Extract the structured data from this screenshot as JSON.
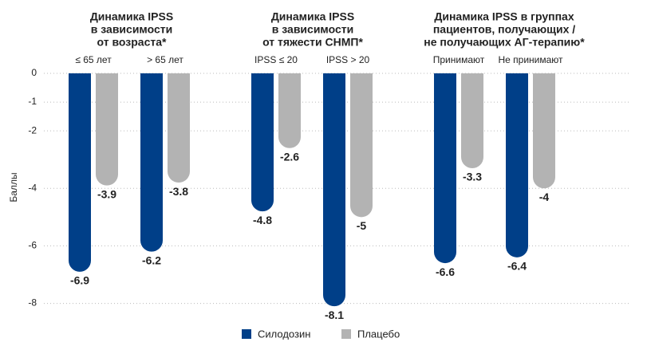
{
  "chart_data": {
    "type": "bar",
    "y_label": "Баллы",
    "group_titles": [
      [
        "Динамика IPSS",
        "в зависимости",
        "от возраста*"
      ],
      [
        "Динамика IPSS",
        "в зависимости",
        "от тяжести СНМП*"
      ],
      [
        "Динамика IPSS в группах",
        "пациентов, получающих /",
        "не получающих АГ-терапию*"
      ]
    ],
    "categories": [
      "≤ 65 лет",
      "> 65 лет",
      "IPSS ≤ 20",
      "IPSS > 20",
      "Принимают",
      "Не принимают"
    ],
    "series": [
      {
        "name": "Силодозин",
        "color": "#003f88",
        "values": [
          -6.9,
          -6.2,
          -4.8,
          -8.1,
          -6.6,
          -6.4
        ]
      },
      {
        "name": "Плацебо",
        "color": "#b3b3b3",
        "values": [
          -3.9,
          -3.8,
          -2.6,
          -5,
          -3.3,
          -4
        ]
      }
    ],
    "ylim": [
      0,
      -8.4
    ],
    "yticks": [
      0,
      -1,
      -2,
      -4,
      -6,
      -8
    ],
    "grid": true,
    "legend": "bottom"
  }
}
